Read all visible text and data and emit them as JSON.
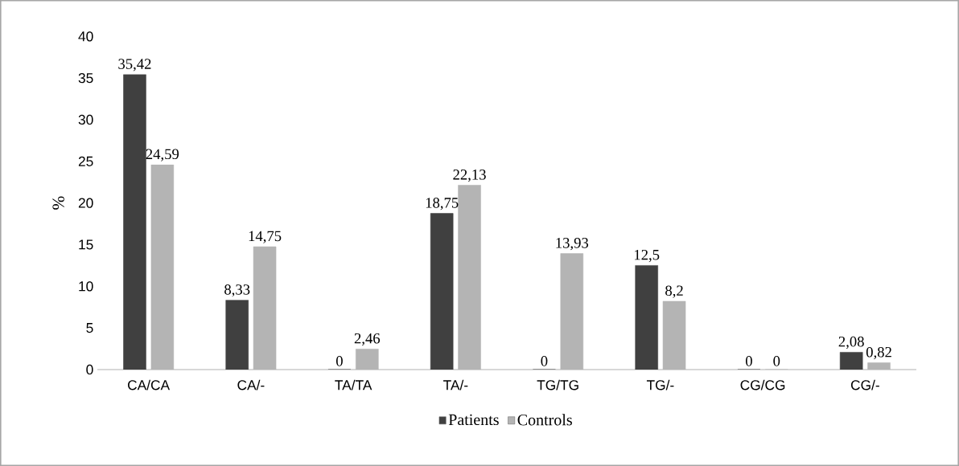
{
  "chart_data": {
    "type": "bar",
    "ylabel": "%",
    "categories": [
      "CA/CA",
      "CA/-",
      "TA/TA",
      "TA/-",
      "TG/TG",
      "TG/-",
      "CG/CG",
      "CG/-"
    ],
    "series": [
      {
        "name": "Patients",
        "color": "#404040",
        "values": [
          35.42,
          8.33,
          0,
          18.75,
          0,
          12.5,
          0,
          2.08
        ],
        "value_labels": [
          "35,42",
          "8,33",
          "0",
          "18,75",
          "0",
          "12,5",
          "0",
          "2,08"
        ]
      },
      {
        "name": "Controls",
        "color": "#b4b4b4",
        "values": [
          24.59,
          14.75,
          2.46,
          22.13,
          13.93,
          8.2,
          0,
          0.82
        ],
        "value_labels": [
          "24,59",
          "14,75",
          "2,46",
          "22,13",
          "13,93",
          "8,2",
          "0",
          "0,82"
        ]
      }
    ],
    "ylim": [
      0,
      40
    ],
    "yticks": [
      0,
      5,
      10,
      15,
      20,
      25,
      30,
      35,
      40
    ],
    "legend": "bottom",
    "grid": false
  }
}
